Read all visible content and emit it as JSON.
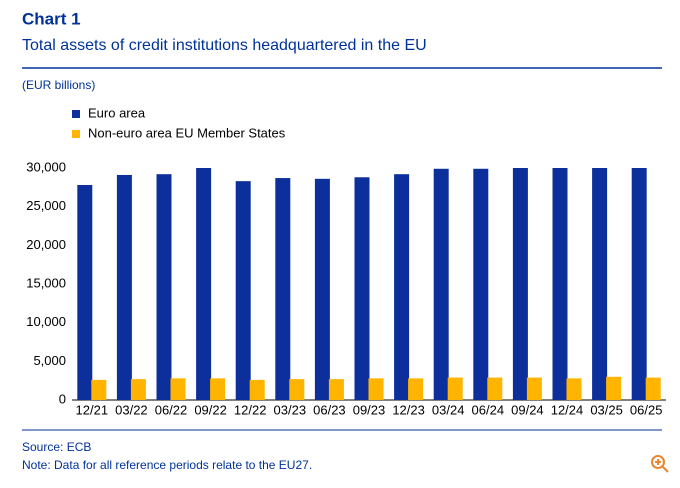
{
  "chart_data": {
    "type": "bar",
    "title": "Chart 1",
    "subtitle": "Total assets of credit institutions headquartered in the EU",
    "unit_label": "(EUR billions)",
    "categories": [
      "12/21",
      "03/22",
      "06/22",
      "09/22",
      "12/22",
      "03/23",
      "06/23",
      "09/23",
      "12/23",
      "03/24",
      "06/24",
      "09/24",
      "12/24",
      "03/25",
      "06/25"
    ],
    "series": [
      {
        "name": "Euro area",
        "color": "#0d2f9c",
        "values": [
          27800,
          29100,
          29200,
          30000,
          28300,
          28700,
          28600,
          28800,
          29200,
          29900,
          29900,
          30000,
          30000,
          30000,
          30000
        ]
      },
      {
        "name": "Non-euro area EU Member States",
        "color": "#ffb400",
        "values": [
          2600,
          2700,
          2800,
          2800,
          2600,
          2700,
          2700,
          2800,
          2800,
          2900,
          2900,
          2900,
          2800,
          3000,
          2900
        ]
      }
    ],
    "ylim": [
      0,
      30000
    ],
    "yticks": [
      0,
      {
        "value": 5000,
        "label": "5,000"
      },
      {
        "value": 10000,
        "label": "10,000"
      },
      {
        "value": 15000,
        "label": "15,000"
      },
      {
        "value": 20000,
        "label": "20,000"
      },
      {
        "value": 25000,
        "label": "25,000"
      },
      {
        "value": 30000,
        "label": "30,000"
      }
    ],
    "grid": false,
    "legend": "top-left",
    "source": "Source: ECB",
    "note": "Note: Data for all reference periods relate to the EU27."
  }
}
